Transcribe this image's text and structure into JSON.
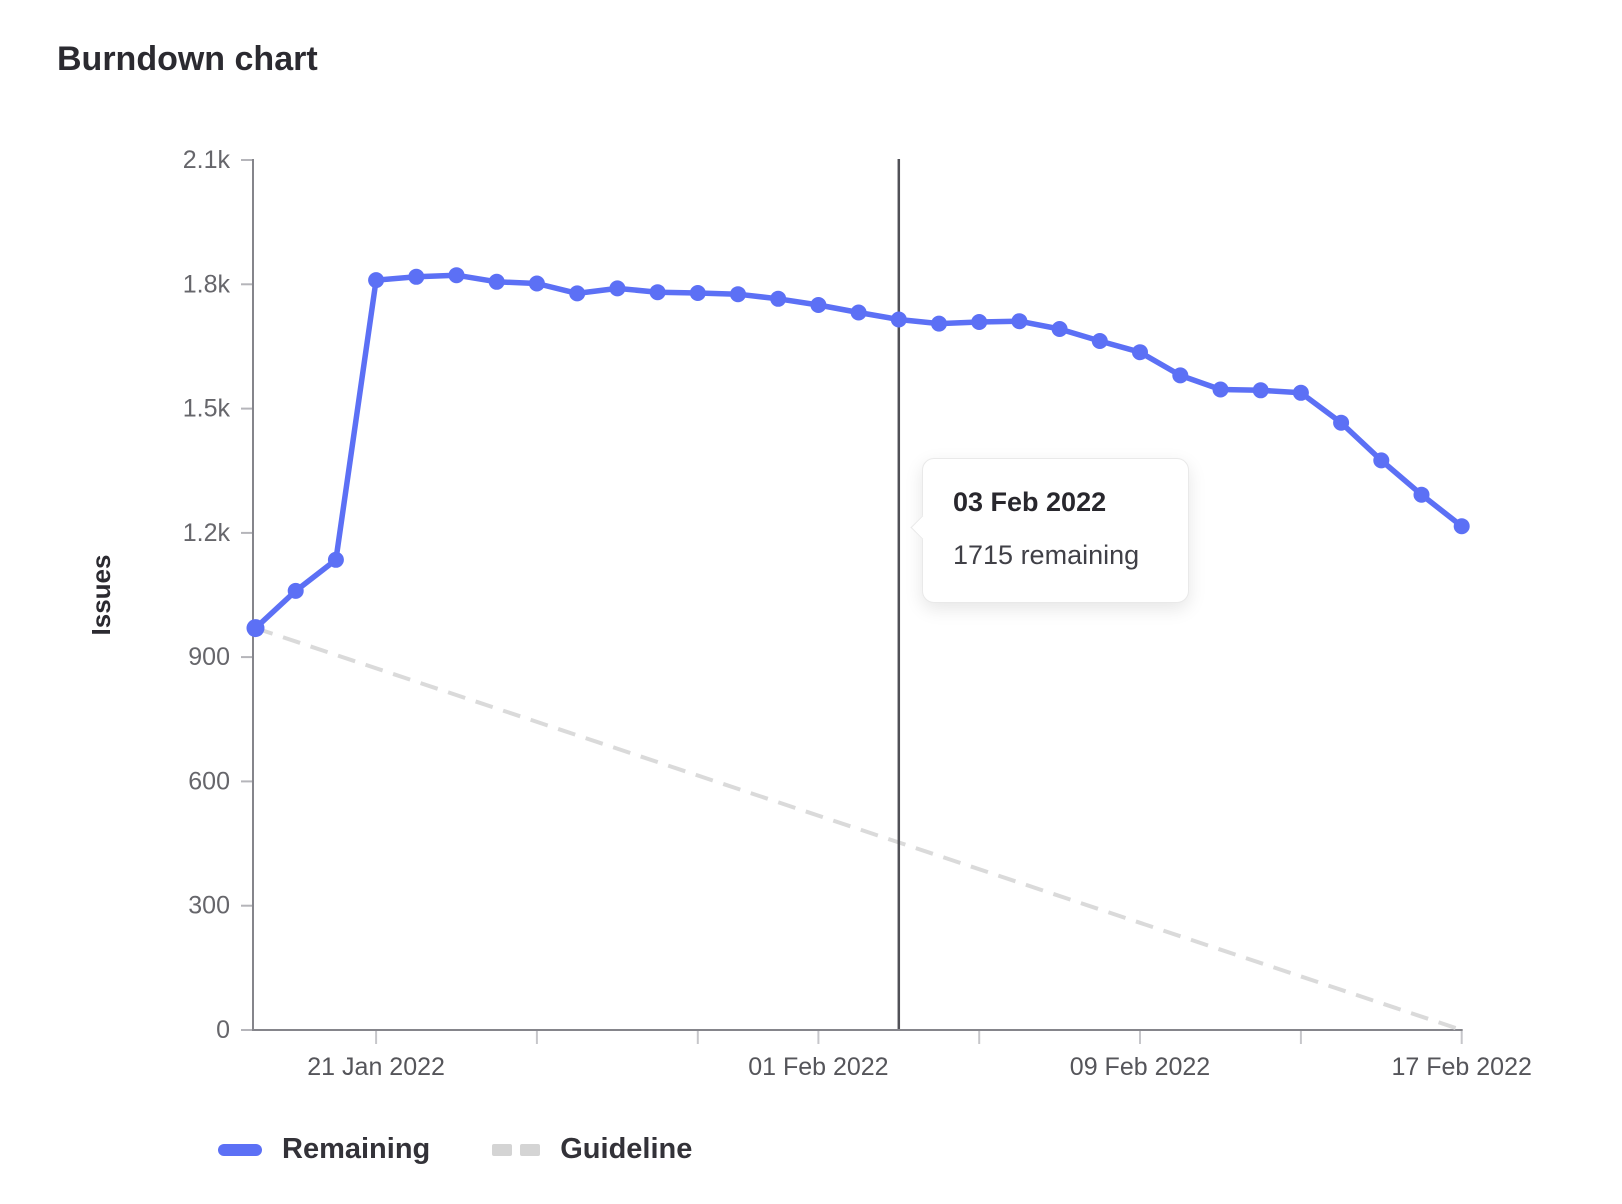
{
  "tooltip": {
    "title": "03 Feb 2022",
    "body": "1715 remaining"
  },
  "legend": {
    "remaining_label": "Remaining",
    "guideline_label": "Guideline"
  },
  "colors": {
    "remaining": "#5c70f5",
    "guideline": "#dadada",
    "marker_line": "#515157",
    "axis": "#85858b"
  },
  "chart_data": {
    "type": "line",
    "title": "Burndown chart",
    "xlabel": "",
    "ylabel": "Issues",
    "ylim": [
      0,
      2100
    ],
    "grid": false,
    "legend_position": "bottom-left",
    "y_ticks": [
      {
        "value": 0,
        "label": "0"
      },
      {
        "value": 300,
        "label": "300"
      },
      {
        "value": 600,
        "label": "600"
      },
      {
        "value": 900,
        "label": "900"
      },
      {
        "value": 1200,
        "label": "1.2k"
      },
      {
        "value": 1500,
        "label": "1.5k"
      },
      {
        "value": 1800,
        "label": "1.8k"
      },
      {
        "value": 2100,
        "label": "2.1k"
      }
    ],
    "x_ticks": [
      {
        "index": 3,
        "label": "21 Jan 2022"
      },
      {
        "index": 7,
        "label": ""
      },
      {
        "index": 11,
        "label": ""
      },
      {
        "index": 14,
        "label": "01 Feb 2022"
      },
      {
        "index": 18,
        "label": ""
      },
      {
        "index": 22,
        "label": "09 Feb 2022"
      },
      {
        "index": 26,
        "label": ""
      },
      {
        "index": 30,
        "label": "17 Feb 2022"
      }
    ],
    "x": [
      "18 Jan 2022",
      "19 Jan 2022",
      "20 Jan 2022",
      "21 Jan 2022",
      "22 Jan 2022",
      "23 Jan 2022",
      "24 Jan 2022",
      "25 Jan 2022",
      "26 Jan 2022",
      "27 Jan 2022",
      "28 Jan 2022",
      "29 Jan 2022",
      "30 Jan 2022",
      "31 Jan 2022",
      "01 Feb 2022",
      "02 Feb 2022",
      "03 Feb 2022",
      "04 Feb 2022",
      "05 Feb 2022",
      "06 Feb 2022",
      "07 Feb 2022",
      "08 Feb 2022",
      "09 Feb 2022",
      "10 Feb 2022",
      "11 Feb 2022",
      "12 Feb 2022",
      "13 Feb 2022",
      "14 Feb 2022",
      "15 Feb 2022",
      "16 Feb 2022",
      "17 Feb 2022"
    ],
    "series": [
      {
        "name": "Remaining",
        "style": "solid",
        "color": "#5c70f5",
        "values": [
          970,
          1060,
          1135,
          1810,
          1818,
          1822,
          1806,
          1802,
          1778,
          1790,
          1781,
          1779,
          1776,
          1765,
          1750,
          1732,
          1715,
          1705,
          1709,
          1711,
          1692,
          1663,
          1636,
          1580,
          1546,
          1544,
          1538,
          1466,
          1375,
          1292,
          1216
        ]
      },
      {
        "name": "Guideline",
        "style": "dashed",
        "color": "#dadada",
        "points": [
          {
            "index": 0,
            "value": 970
          },
          {
            "index": 30,
            "value": 0
          }
        ]
      }
    ],
    "marker": {
      "index": 16,
      "date": "03 Feb 2022",
      "value": 1715,
      "label": "1715 remaining"
    }
  }
}
